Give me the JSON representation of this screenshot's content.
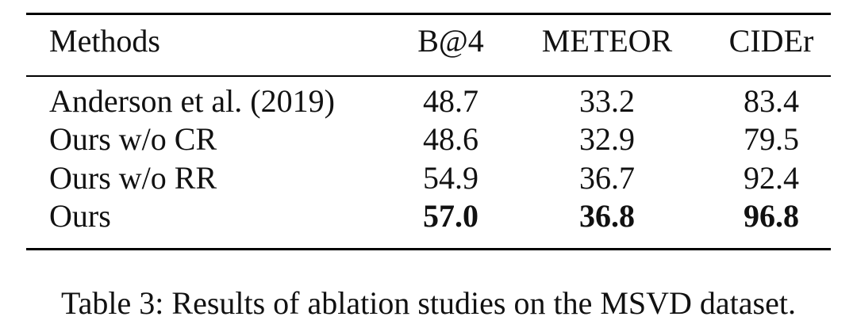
{
  "table": {
    "columns": [
      "Methods",
      "B@4",
      "METEOR",
      "CIDEr"
    ],
    "rows": [
      [
        "Anderson et al. (2019)",
        "48.7",
        "33.2",
        "83.4"
      ],
      [
        "Ours w/o CR",
        "48.6",
        "32.9",
        "79.5"
      ],
      [
        "Ours w/o RR",
        "54.9",
        "36.7",
        "92.4"
      ],
      [
        "Ours",
        "57.0",
        "36.8",
        "96.8"
      ]
    ]
  },
  "caption": "Table 3: Results of ablation studies on the MSVD dataset."
}
